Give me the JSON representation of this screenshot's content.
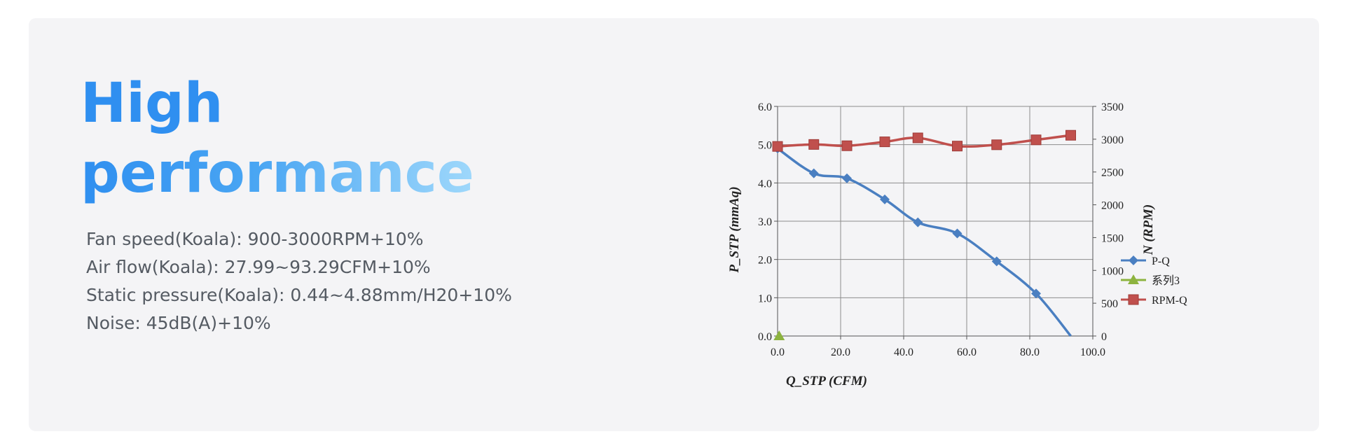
{
  "headline": {
    "line1": "High",
    "line2": "performance"
  },
  "specs": [
    "Fan speed(Koala): 900-3000RPM+10%",
    "Air flow(Koala): 27.99~93.29CFM+10%",
    "Static pressure(Koala): 0.44~4.88mm/H20+10%",
    "Noise: 45dB(A)+10%"
  ],
  "colors": {
    "card_bg": "#f4f4f6",
    "headline": "#2f8ff0",
    "pq": "#4a7fc1",
    "series3": "#8db33f",
    "rpm": "#c0504d"
  },
  "chart_data": {
    "type": "line",
    "xlabel": "Q_STP (CFM)",
    "ylabel": "P_STP (mmAq)",
    "y2label": "N (RPM)",
    "xlim": [
      0,
      100
    ],
    "ylim": [
      0,
      6
    ],
    "y2lim": [
      0,
      3500
    ],
    "x_ticks": [
      "0.0",
      "20.0",
      "40.0",
      "60.0",
      "80.0",
      "100.0"
    ],
    "y_ticks": [
      "0.0",
      "1.0",
      "2.0",
      "3.0",
      "4.0",
      "5.0",
      "6.0"
    ],
    "y2_ticks": [
      "0",
      "500",
      "1000",
      "1500",
      "2000",
      "2500",
      "3000",
      "3500"
    ],
    "grid": true,
    "legend_position": "right",
    "series": [
      {
        "name": "P-Q",
        "axis": "left",
        "marker": "diamond",
        "x": [
          0,
          11.5,
          22,
          34,
          44.5,
          57,
          69.5,
          82,
          93
        ],
        "y": [
          4.9,
          4.25,
          4.12,
          3.57,
          2.97,
          2.68,
          1.95,
          1.11,
          0
        ]
      },
      {
        "name": "系列3",
        "axis": "left",
        "marker": "triangle",
        "x": [
          0.5
        ],
        "y": [
          0
        ]
      },
      {
        "name": "RPM-Q",
        "axis": "right",
        "marker": "square",
        "x": [
          0,
          11.5,
          22,
          34,
          44.5,
          57,
          69.5,
          82,
          93
        ],
        "y": [
          2890,
          2920,
          2900,
          2960,
          3020,
          2895,
          2915,
          2990,
          3060
        ]
      }
    ]
  }
}
